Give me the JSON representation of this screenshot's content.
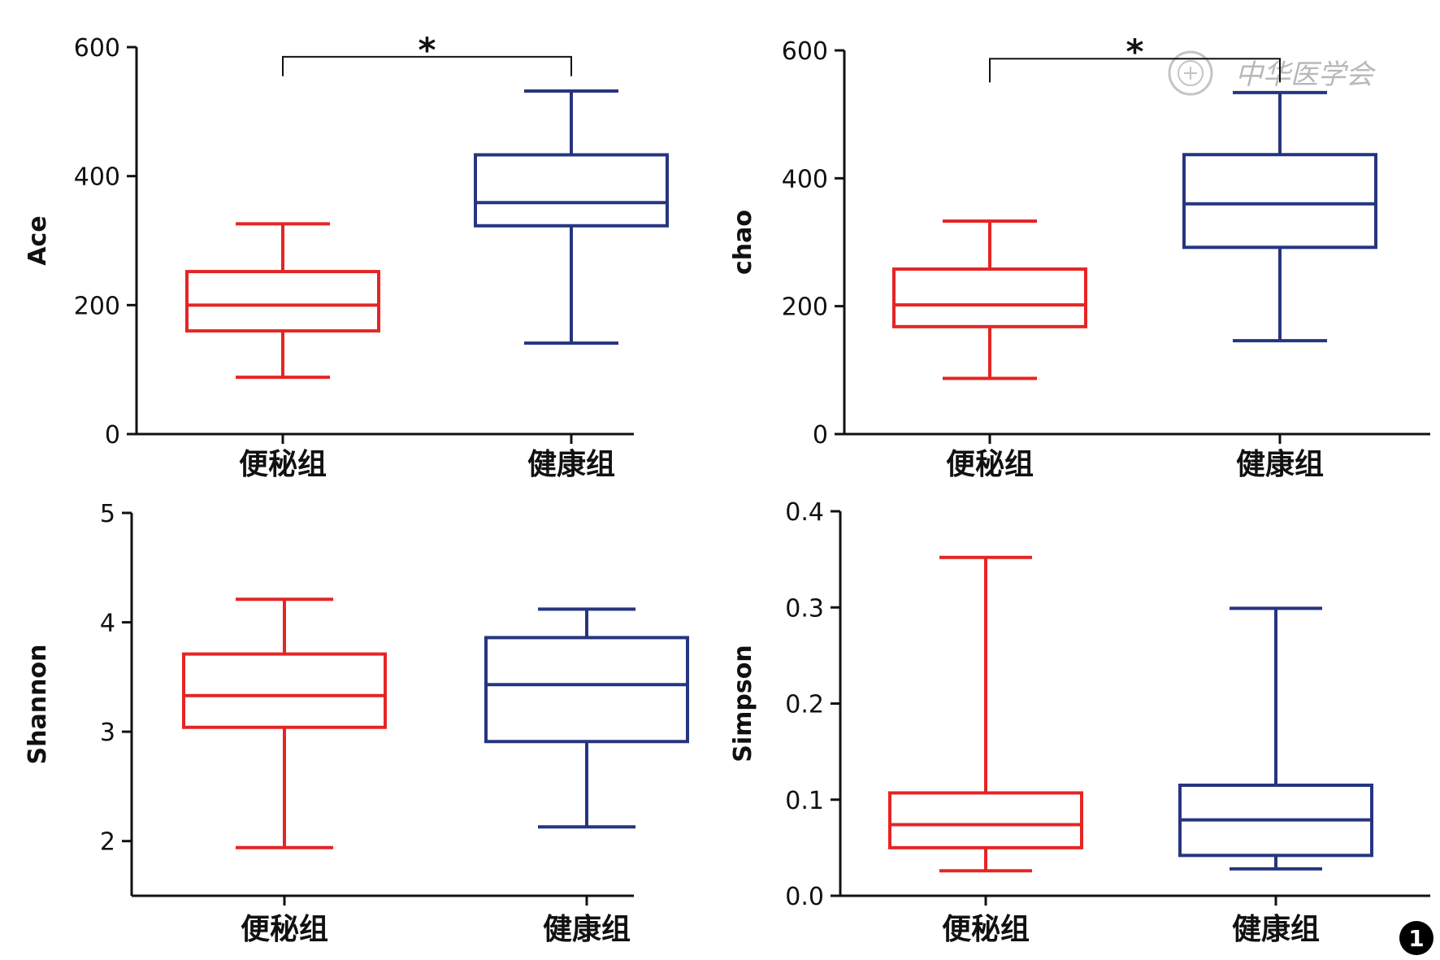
{
  "colors": {
    "constipation": "#e52524",
    "healthy": "#263580",
    "axis": "#111111"
  },
  "watermark": {
    "text": "中华医学会",
    "icon": "medical-seal-icon"
  },
  "figure_number": "1",
  "chart_data": [
    {
      "type": "boxplot",
      "ylabel": "Ace",
      "ylim": [
        0,
        600
      ],
      "yticks": [
        "0",
        "200",
        "400",
        "600"
      ],
      "yticks_values": [
        0,
        200,
        400,
        600
      ],
      "categories": [
        "便秘组",
        "健康组"
      ],
      "boxes": [
        {
          "name": "便秘组",
          "min": 88,
          "q1": 160,
          "median": 200,
          "q3": 252,
          "max": 326
        },
        {
          "name": "健康组",
          "min": 141,
          "q1": 323,
          "median": 359,
          "q3": 433,
          "max": 532
        }
      ],
      "significance": {
        "label": "*",
        "y": 585,
        "y_end": 555
      }
    },
    {
      "type": "boxplot",
      "ylabel": "chao",
      "ylim": [
        0,
        600
      ],
      "yticks": [
        "0",
        "200",
        "400",
        "600"
      ],
      "yticks_values": [
        0,
        200,
        400,
        600
      ],
      "categories": [
        "便秘组",
        "健康组"
      ],
      "boxes": [
        {
          "name": "便秘组",
          "min": 87,
          "q1": 168,
          "median": 202,
          "q3": 258,
          "max": 333
        },
        {
          "name": "健康组",
          "min": 146,
          "q1": 292,
          "median": 360,
          "q3": 437,
          "max": 534
        }
      ],
      "significance": {
        "label": "*",
        "y": 587,
        "y_end": 550
      }
    },
    {
      "type": "boxplot",
      "ylabel": "Shannon",
      "ylim": [
        1.5,
        5
      ],
      "yticks": [
        "2",
        "3",
        "4",
        "5"
      ],
      "yticks_values": [
        2,
        3,
        4,
        5
      ],
      "categories": [
        "便秘组",
        "健康组"
      ],
      "boxes": [
        {
          "name": "便秘组",
          "min": 1.94,
          "q1": 3.04,
          "median": 3.33,
          "q3": 3.71,
          "max": 4.21
        },
        {
          "name": "健康组",
          "min": 2.13,
          "q1": 2.91,
          "median": 3.43,
          "q3": 3.86,
          "max": 4.12
        }
      ]
    },
    {
      "type": "boxplot",
      "ylabel": "Simpson",
      "ylim": [
        0,
        0.4
      ],
      "yticks": [
        "0.0",
        "0.1",
        "0.2",
        "0.3",
        "0.4"
      ],
      "yticks_values": [
        0,
        0.1,
        0.2,
        0.3,
        0.4
      ],
      "categories": [
        "便秘组",
        "健康组"
      ],
      "boxes": [
        {
          "name": "便秘组",
          "min": 0.026,
          "q1": 0.05,
          "median": 0.074,
          "q3": 0.107,
          "max": 0.352
        },
        {
          "name": "健康组",
          "min": 0.028,
          "q1": 0.042,
          "median": 0.079,
          "q3": 0.115,
          "max": 0.299
        }
      ]
    }
  ]
}
